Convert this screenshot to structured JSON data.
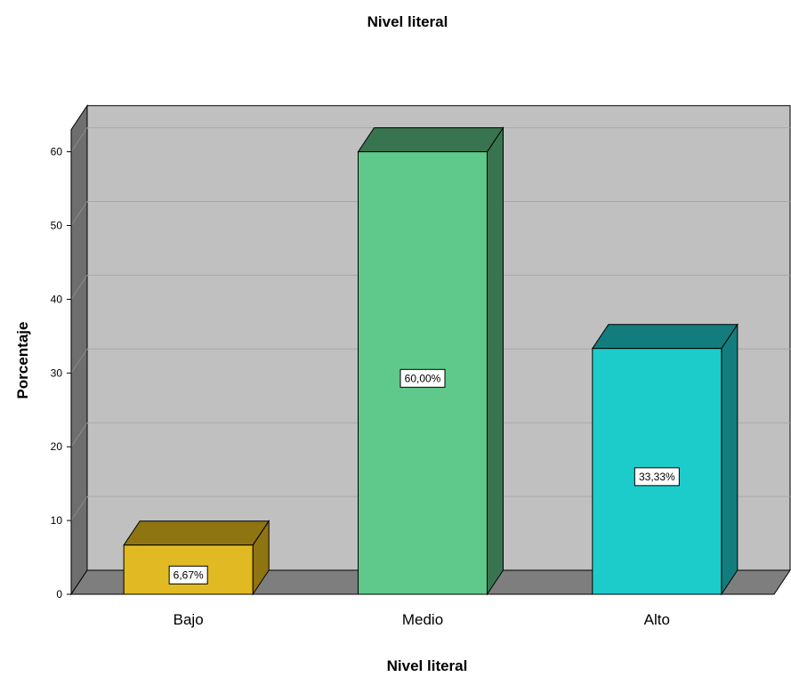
{
  "chart_data": {
    "type": "bar",
    "title": "Nivel literal",
    "xlabel": "Nivel literal",
    "ylabel": "Porcentaje",
    "categories": [
      "Bajo",
      "Medio",
      "Alto"
    ],
    "values": [
      6.67,
      60.0,
      33.33
    ],
    "data_labels": [
      "6,67%",
      "60,00%",
      "33,33%"
    ],
    "ylim": [
      0,
      63
    ],
    "yticks": [
      0,
      10,
      20,
      30,
      40,
      50,
      60
    ],
    "grid": true,
    "style": "3d",
    "colors": {
      "bars": [
        "#e1b922",
        "#5ec98a",
        "#1ccccb"
      ],
      "bar_tops": [
        "#8f7412",
        "#37744f",
        "#137d7d"
      ],
      "bar_sides": [
        "#8f7412",
        "#37744f",
        "#137d7d"
      ],
      "background": "#c0c0c0",
      "walls": "#6e6e6e",
      "floor": "#7e7e7e"
    }
  }
}
